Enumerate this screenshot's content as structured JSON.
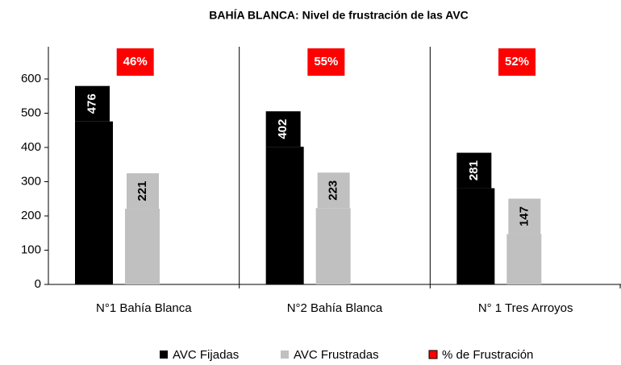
{
  "chart_data": {
    "type": "bar",
    "title": "BAHÍA BLANCA: Nivel de frustración de las AVC",
    "categories": [
      "N°1 Bahía Blanca",
      "N°2 Bahía Blanca",
      "N° 1 Tres Arroyos"
    ],
    "series": [
      {
        "name": "AVC Fijadas",
        "color": "#000000",
        "values": [
          476,
          402,
          281
        ]
      },
      {
        "name": "AVC Frustradas",
        "color": "#c0c0c0",
        "values": [
          221,
          223,
          147
        ]
      },
      {
        "name": "% de Frustración",
        "color": "#ff0000",
        "values": [
          46,
          55,
          52
        ],
        "value_labels": [
          "46%",
          "55%",
          "52%"
        ]
      }
    ],
    "ylim": [
      0,
      600
    ],
    "yticks": [
      0,
      100,
      200,
      300,
      400,
      500,
      600
    ]
  }
}
